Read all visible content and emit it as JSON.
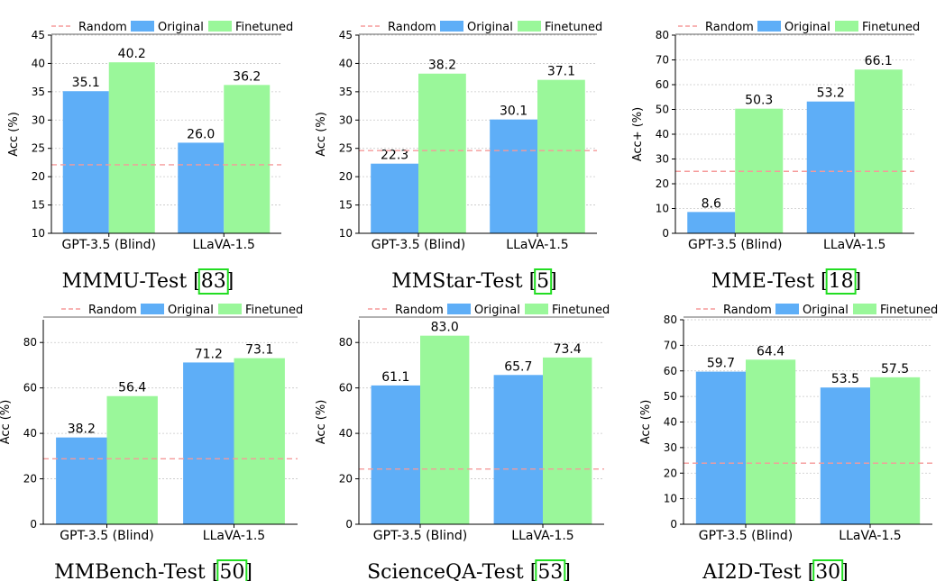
{
  "colors": {
    "original": "#5EAEF7",
    "finetuned": "#9AF79A",
    "random": "#F59A9A",
    "citation_box": "#22DD22",
    "grid": "#C8C8C8"
  },
  "chart_data": [
    {
      "type": "bar",
      "caption": "MMMU-Test",
      "citation": "83",
      "ylabel": "Acc (%)",
      "ylim": [
        10,
        45
      ],
      "yticks": [
        10,
        15,
        20,
        25,
        30,
        35,
        40,
        45
      ],
      "categories": [
        "GPT-3.5 (Blind)",
        "LLaVA-1.5"
      ],
      "series": [
        {
          "name": "Original",
          "values": [
            35.1,
            26.0
          ],
          "labels": [
            "35.1",
            "26.0"
          ]
        },
        {
          "name": "Finetuned",
          "values": [
            40.2,
            36.2
          ],
          "labels": [
            "40.2",
            "36.2"
          ]
        }
      ],
      "random": {
        "name": "Random",
        "value": 22.1
      },
      "legend": "top",
      "grid": "y-dashed"
    },
    {
      "type": "bar",
      "caption": "MMStar-Test",
      "citation": "5",
      "ylabel": "Acc (%)",
      "ylim": [
        10,
        45
      ],
      "yticks": [
        10,
        15,
        20,
        25,
        30,
        35,
        40,
        45
      ],
      "categories": [
        "GPT-3.5 (Blind)",
        "LLaVA-1.5"
      ],
      "series": [
        {
          "name": "Original",
          "values": [
            22.3,
            30.1
          ],
          "labels": [
            "22.3",
            "30.1"
          ]
        },
        {
          "name": "Finetuned",
          "values": [
            38.2,
            37.1
          ],
          "labels": [
            "38.2",
            "37.1"
          ]
        }
      ],
      "random": {
        "name": "Random",
        "value": 24.6
      },
      "legend": "top",
      "grid": "y-dashed"
    },
    {
      "type": "bar",
      "caption": "MME-Test",
      "citation": "18",
      "ylabel": "Acc+ (%)",
      "ylim": [
        0,
        80
      ],
      "yticks": [
        0,
        10,
        20,
        30,
        40,
        50,
        60,
        70,
        80
      ],
      "categories": [
        "GPT-3.5 (Blind)",
        "LLaVA-1.5"
      ],
      "series": [
        {
          "name": "Original",
          "values": [
            8.6,
            53.2
          ],
          "labels": [
            "8.6",
            "53.2"
          ]
        },
        {
          "name": "Finetuned",
          "values": [
            50.3,
            66.1
          ],
          "labels": [
            "50.3",
            "66.1"
          ]
        }
      ],
      "random": {
        "name": "Random",
        "value": 25.0
      },
      "legend": "top",
      "grid": "y-dashed"
    },
    {
      "type": "bar",
      "caption": "MMBench-Test",
      "citation": "50",
      "ylabel": "Acc (%)",
      "ylim": [
        0,
        90
      ],
      "yticks": [
        0,
        20,
        40,
        60,
        80
      ],
      "categories": [
        "GPT-3.5 (Blind)",
        "LLaVA-1.5"
      ],
      "series": [
        {
          "name": "Original",
          "values": [
            38.2,
            71.2
          ],
          "labels": [
            "38.2",
            "71.2"
          ]
        },
        {
          "name": "Finetuned",
          "values": [
            56.4,
            73.1
          ],
          "labels": [
            "56.4",
            "73.1"
          ]
        }
      ],
      "random": {
        "name": "Random",
        "value": 28.8
      },
      "legend": "top",
      "grid": "y-dashed"
    },
    {
      "type": "bar",
      "caption": "ScienceQA-Test",
      "citation": "53",
      "ylabel": "Acc (%)",
      "ylim": [
        0,
        90
      ],
      "yticks": [
        0,
        20,
        40,
        60,
        80
      ],
      "categories": [
        "GPT-3.5 (Blind)",
        "LLaVA-1.5"
      ],
      "series": [
        {
          "name": "Original",
          "values": [
            61.1,
            65.7
          ],
          "labels": [
            "61.1",
            "65.7"
          ]
        },
        {
          "name": "Finetuned",
          "values": [
            83.0,
            73.4
          ],
          "labels": [
            "83.0",
            "73.4"
          ]
        }
      ],
      "random": {
        "name": "Random",
        "value": 24.3
      },
      "legend": "top",
      "grid": "y-dashed"
    },
    {
      "type": "bar",
      "caption": "AI2D-Test",
      "citation": "30",
      "ylabel": "Acc (%)",
      "ylim": [
        0,
        80
      ],
      "yticks": [
        0,
        10,
        20,
        30,
        40,
        50,
        60,
        70,
        80
      ],
      "categories": [
        "GPT-3.5 (Blind)",
        "LLaVA-1.5"
      ],
      "series": [
        {
          "name": "Original",
          "values": [
            59.7,
            53.5
          ],
          "labels": [
            "59.7",
            "53.5"
          ]
        },
        {
          "name": "Finetuned",
          "values": [
            64.4,
            57.5
          ],
          "labels": [
            "64.4",
            "57.5"
          ]
        }
      ],
      "random": {
        "name": "Random",
        "value": 23.9
      },
      "legend": "top",
      "grid": "y-dashed"
    }
  ]
}
